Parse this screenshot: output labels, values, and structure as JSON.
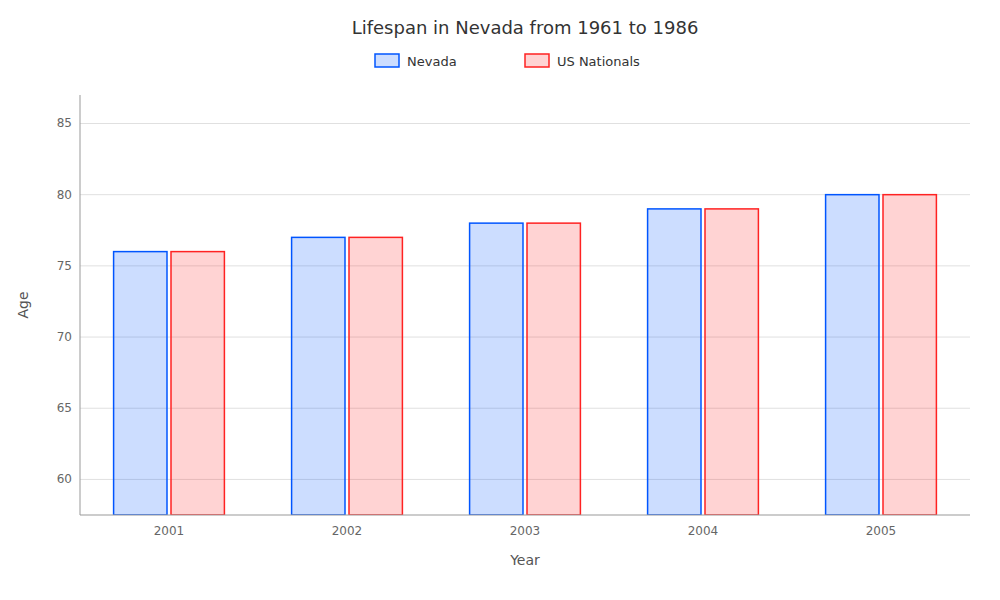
{
  "chart_data": {
    "type": "bar",
    "title": "Lifespan in Nevada from 1961 to 1986",
    "x_label": "Year",
    "y_label": "Age",
    "categories": [
      "2001",
      "2002",
      "2003",
      "2004",
      "2005"
    ],
    "series": [
      {
        "name": "Nevada",
        "color": "#0055ff",
        "values": [
          76,
          77,
          78,
          79,
          80
        ]
      },
      {
        "name": "US Nationals",
        "color": "#ff2222",
        "values": [
          76,
          77,
          78,
          79,
          80
        ]
      }
    ],
    "ylim": [
      57.5,
      87
    ],
    "yticks": [
      60,
      65,
      70,
      75,
      80,
      85
    ],
    "grid": true,
    "legend": "top"
  }
}
